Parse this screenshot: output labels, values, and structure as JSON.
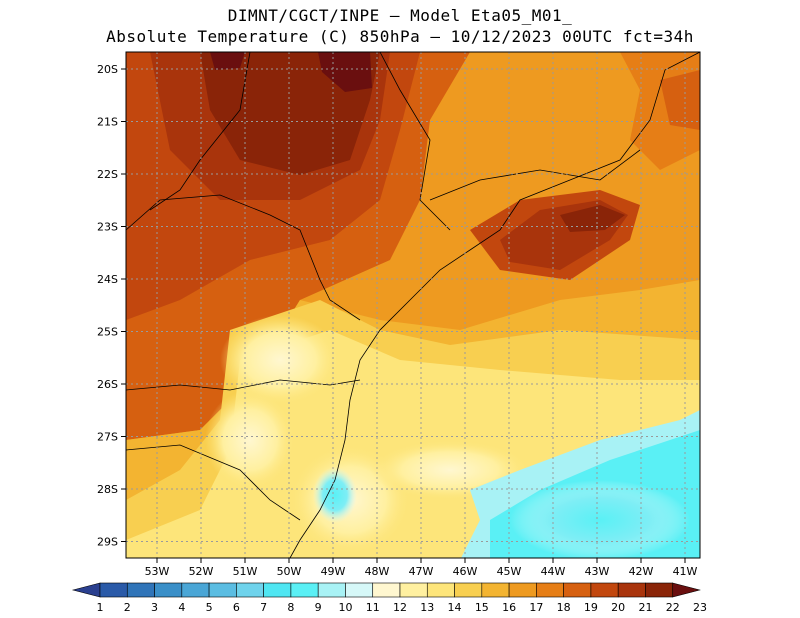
{
  "title": {
    "line1": "DIMNT/CGCT/INPE –  Model Eta05_M01_",
    "line2": "Absolute Temperature (C) 850hPa –  10/12/2023 00UTC fct=34h"
  },
  "map": {
    "lat_labels": [
      "20S",
      "21S",
      "22S",
      "23S",
      "24S",
      "25S",
      "26S",
      "27S",
      "28S",
      "29S"
    ],
    "lon_labels": [
      "53W",
      "52W",
      "51W",
      "50W",
      "49W",
      "48W",
      "47W",
      "46W",
      "45W",
      "44W",
      "43W",
      "42W",
      "41W"
    ],
    "field": "temperature_850hPa_C"
  },
  "colorbar": {
    "labels": [
      "1",
      "2",
      "3",
      "4",
      "5",
      "6",
      "7",
      "8",
      "9",
      "10",
      "11",
      "12",
      "13",
      "14",
      "15",
      "16",
      "17",
      "18",
      "19",
      "20",
      "21",
      "22",
      "23"
    ],
    "colors": [
      "#2a3f8f",
      "#2a5aa8",
      "#2f74b8",
      "#3a8fc8",
      "#4aa6d6",
      "#5bbde2",
      "#6fd3ec",
      "#4fe6f2",
      "#5af0f5",
      "#a8f2f5",
      "#d6f8f8",
      "#fff7d0",
      "#fff0a0",
      "#fde57a",
      "#f8cf50",
      "#f3b431",
      "#ee9a20",
      "#e67e16",
      "#d66010",
      "#c2470e",
      "#a9340c",
      "#8a2408",
      "#6a0f0f"
    ]
  }
}
